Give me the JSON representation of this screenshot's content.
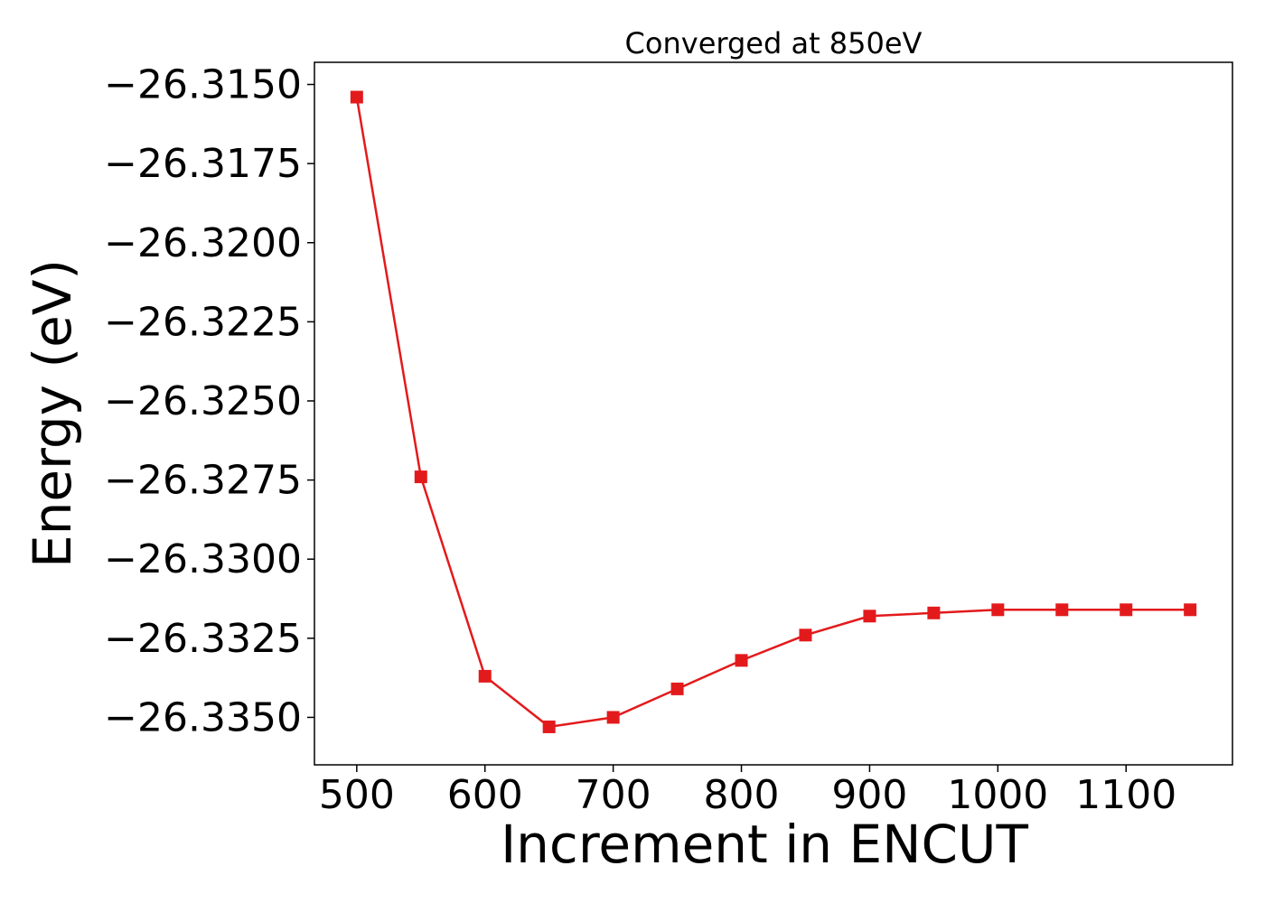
{
  "chart_data": {
    "type": "line",
    "title": "Converged at 850eV",
    "xlabel": "Increment in ENCUT",
    "ylabel": "Energy (eV)",
    "x": [
      500,
      550,
      600,
      650,
      700,
      750,
      800,
      850,
      900,
      950,
      1000,
      1050,
      1100,
      1150
    ],
    "series": [
      {
        "values": [
          -26.3154,
          -26.3274,
          -26.3337,
          -26.3353,
          -26.335,
          -26.3341,
          -26.3332,
          -26.3324,
          -26.3318,
          -26.3317,
          -26.3316,
          -26.3316,
          -26.3316,
          -26.3316
        ],
        "color": "#e31a1c",
        "marker": "square"
      }
    ],
    "xlim": [
      467,
      1183
    ],
    "ylim": [
      -26.3365,
      -26.3143
    ],
    "xticks": [
      500,
      600,
      700,
      800,
      900,
      1000,
      1100
    ],
    "xtick_labels": [
      "500",
      "600",
      "700",
      "800",
      "900",
      "1000",
      "1100"
    ],
    "yticks": [
      -26.315,
      -26.3175,
      -26.32,
      -26.3225,
      -26.325,
      -26.3275,
      -26.33,
      -26.3325,
      -26.335
    ],
    "ytick_labels": [
      "−26.3150",
      "−26.3175",
      "−26.3200",
      "−26.3225",
      "−26.3250",
      "−26.3275",
      "−26.3300",
      "−26.3325",
      "−26.3350"
    ],
    "grid": false,
    "legend": "none"
  }
}
